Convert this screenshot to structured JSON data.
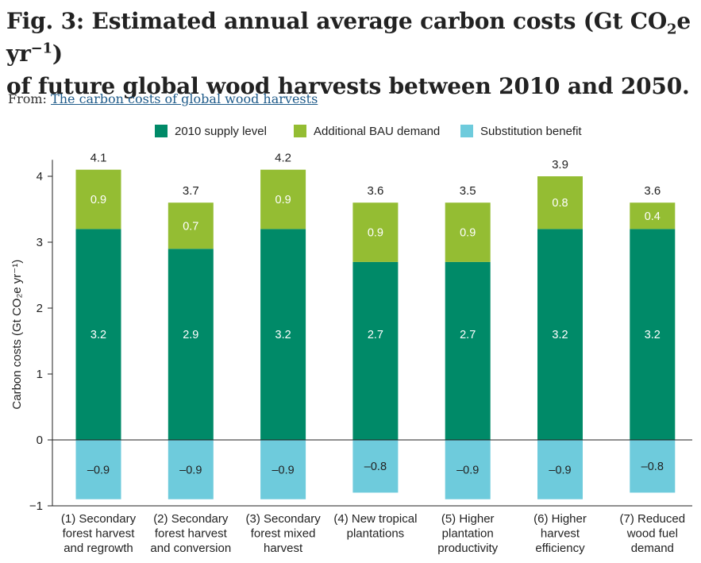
{
  "figure": {
    "title_line1": "Fig. 3: Estimated annual average carbon costs (Gt  CO",
    "title_sub": "2",
    "title_mid": "e  yr",
    "title_sup": "−1",
    "title_close": ")",
    "title_line2": "of future global wood harvests between 2010 and 2050.",
    "from_label": "From:",
    "from_link": "The carbon costs of global wood harvests"
  },
  "colors": {
    "supply": "#008a68",
    "bau": "#94bd33",
    "substitution": "#6ecbdc",
    "axis": "#222222"
  },
  "chart_data": {
    "type": "bar",
    "stacked": true,
    "ylabel": "Carbon costs (Gt CO₂e yr⁻¹)",
    "ylim": [
      -1,
      4.25
    ],
    "yticks": [
      "−1",
      "0",
      "1",
      "2",
      "3",
      "4"
    ],
    "ytick_values": [
      -1,
      0,
      1,
      2,
      3,
      4
    ],
    "legend_position": "top",
    "grid": false,
    "categories": [
      [
        "(1) Secondary",
        "forest harvest",
        "and regrowth"
      ],
      [
        "(2) Secondary",
        "forest harvest",
        "and conversion"
      ],
      [
        "(3) Secondary",
        "forest mixed",
        "harvest"
      ],
      [
        "(4) New tropical",
        "plantations"
      ],
      [
        "(5) Higher",
        "plantation",
        "productivity"
      ],
      [
        "(6) Higher",
        "harvest",
        "efficiency"
      ],
      [
        "(7) Reduced",
        "wood fuel",
        "demand"
      ]
    ],
    "series": [
      {
        "name": "2010 supply level",
        "values": [
          3.2,
          2.9,
          3.2,
          2.7,
          2.7,
          3.2,
          3.2
        ],
        "labels": [
          "3.2",
          "2.9",
          "3.2",
          "2.7",
          "2.7",
          "3.2",
          "3.2"
        ]
      },
      {
        "name": "Additional BAU demand",
        "values": [
          0.9,
          0.7,
          0.9,
          0.9,
          0.9,
          0.8,
          0.4
        ],
        "labels": [
          "0.9",
          "0.7",
          "0.9",
          "0.9",
          "0.9",
          "0.8",
          "0.4"
        ]
      },
      {
        "name": "Substitution benefit",
        "values": [
          -0.9,
          -0.9,
          -0.9,
          -0.8,
          -0.9,
          -0.9,
          -0.8
        ],
        "labels": [
          "–0.9",
          "–0.9",
          "–0.9",
          "–0.8",
          "–0.9",
          "–0.9",
          "–0.8"
        ]
      }
    ],
    "totals": [
      4.1,
      3.7,
      4.2,
      3.6,
      3.5,
      3.9,
      3.6
    ],
    "total_labels": [
      "4.1",
      "3.7",
      "4.2",
      "3.6",
      "3.5",
      "3.9",
      "3.6"
    ]
  }
}
